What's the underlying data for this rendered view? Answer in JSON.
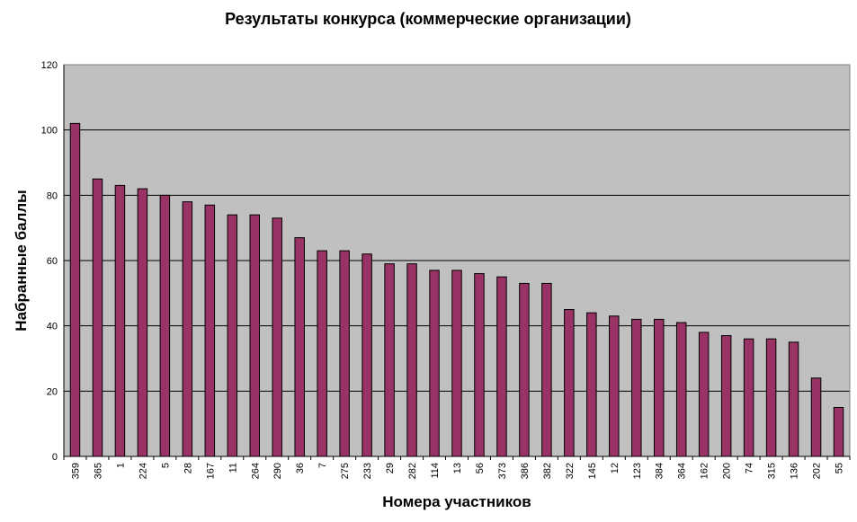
{
  "chart_data": {
    "type": "bar",
    "title": "Результаты конкурса (коммерческие организации)",
    "xlabel": "Номера участников",
    "ylabel": "Набранные баллы",
    "ylim": [
      0,
      120
    ],
    "yticks": [
      0,
      20,
      40,
      60,
      80,
      100,
      120
    ],
    "grid": true,
    "legend": "none",
    "categories": [
      "359",
      "365",
      "1",
      "224",
      "5",
      "28",
      "167",
      "11",
      "264",
      "290",
      "36",
      "7",
      "275",
      "233",
      "29",
      "282",
      "114",
      "13",
      "56",
      "373",
      "386",
      "382",
      "322",
      "145",
      "12",
      "123",
      "384",
      "364",
      "162",
      "200",
      "74",
      "315",
      "136",
      "202",
      "55"
    ],
    "values": [
      102,
      85,
      83,
      82,
      80,
      78,
      77,
      74,
      74,
      73,
      67,
      63,
      63,
      62,
      59,
      59,
      57,
      57,
      56,
      55,
      53,
      53,
      45,
      44,
      43,
      42,
      42,
      41,
      38,
      37,
      36,
      36,
      35,
      24,
      15
    ],
    "colors": {
      "bar": "#993366",
      "plot_background": "#c0c0c0",
      "gridline": "#000000"
    }
  }
}
